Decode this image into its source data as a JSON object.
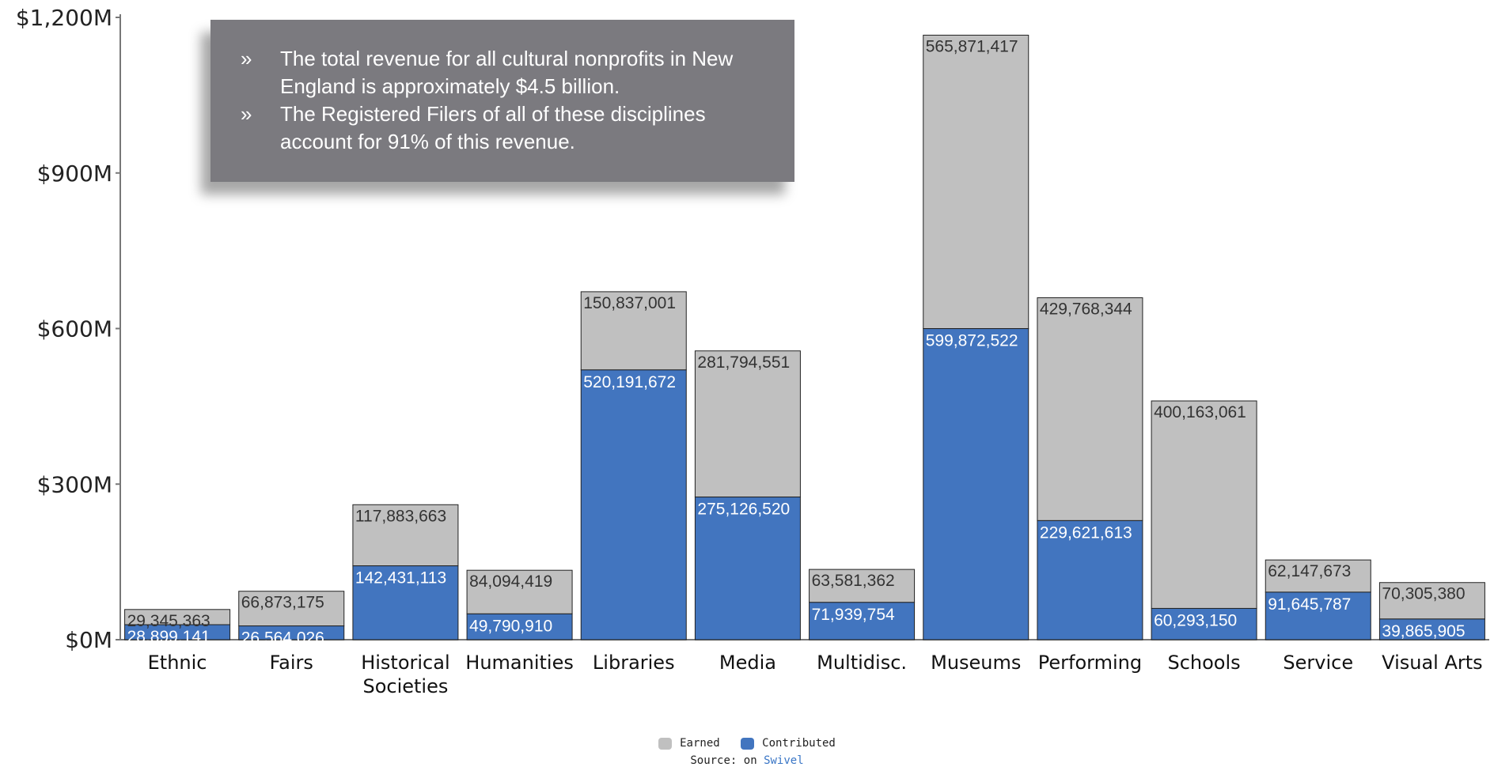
{
  "callout": {
    "bullet_mark": "»",
    "bullets": [
      "The total revenue for all cultural nonprofits in New England is approximately $4.5 billion.",
      "The Registered Filers of all of these disciplines account for 91% of this revenue."
    ]
  },
  "legend": {
    "earned_label": "Earned",
    "contributed_label": "Contributed"
  },
  "source": {
    "prefix": "Source: on",
    "link_text": "Swivel"
  },
  "chart_data": {
    "type": "bar",
    "stacked": true,
    "categories": [
      "Ethnic",
      "Fairs",
      "Historical Societies",
      "Humanities",
      "Libraries",
      "Media",
      "Multidisc.",
      "Museums",
      "Performing",
      "Schools",
      "Service",
      "Visual Arts"
    ],
    "series": [
      {
        "name": "Contributed",
        "color": "#4275bf",
        "values": [
          28899141,
          26564026,
          142431113,
          49790910,
          520191672,
          275126520,
          71939754,
          599872522,
          229621613,
          60293150,
          91645787,
          39865905
        ],
        "labels": [
          "28,899,141",
          "26,564,026",
          "142,431,113",
          "49,790,910",
          "520,191,672",
          "275,126,520",
          "71,939,754",
          "599,872,522",
          "229,621,613",
          "60,293,150",
          "91,645,787",
          "39,865,905"
        ]
      },
      {
        "name": "Earned",
        "color": "#c0c0c0",
        "values": [
          29345363,
          66873175,
          117883663,
          84094419,
          150837001,
          281794551,
          63581362,
          565871417,
          429768344,
          400163061,
          62147673,
          70305380
        ],
        "labels": [
          "29,345,363",
          "66,873,175",
          "117,883,663",
          "84,094,419",
          "150,837,001",
          "281,794,551",
          "63,581,362",
          "565,871,417",
          "429,768,344",
          "400,163,061",
          "62,147,673",
          "70,305,380"
        ]
      }
    ],
    "yticks": [
      0,
      300000000,
      600000000,
      900000000,
      1200000000
    ],
    "ytick_labels": [
      "$0M",
      "$300M",
      "$600M",
      "$900M",
      "$1,200M"
    ],
    "ylim": [
      0,
      1200000000
    ],
    "legend_position": "bottom-center",
    "grid": false
  }
}
